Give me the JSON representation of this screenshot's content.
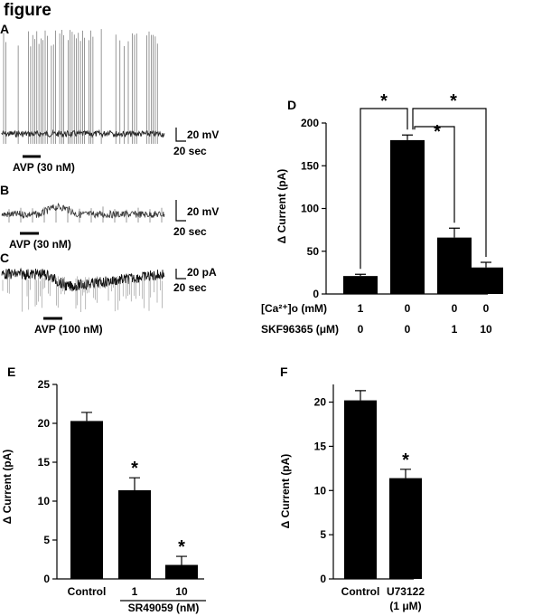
{
  "figure_title": "figure",
  "trace_panels": [
    {
      "label": "A",
      "drug_label": "AVP (30 nM)",
      "scale_y": "20 mV",
      "scale_x": "20 sec"
    },
    {
      "label": "B",
      "drug_label": "AVP (30 nM)",
      "scale_y": "20 mV",
      "scale_x": "20 sec"
    },
    {
      "label": "C",
      "drug_label": "AVP (100 nM)",
      "scale_y": "20 pA",
      "scale_x": "20 sec"
    }
  ],
  "chart_data": [
    {
      "id": "D",
      "label": "D",
      "type": "bar",
      "ylabel": "Δ Current (pA)",
      "ylim": [
        0,
        200
      ],
      "yticks": [
        0,
        50,
        100,
        150,
        200
      ],
      "values": [
        21,
        180,
        66,
        31
      ],
      "errors": [
        2,
        6,
        11,
        6
      ],
      "condition_rows": [
        {
          "name": "[Ca²⁺]o (mM)",
          "values": [
            "1",
            "0",
            "0",
            "0"
          ]
        },
        {
          "name": "SKF96365 (μM)",
          "values": [
            "0",
            "0",
            "1",
            "10"
          ]
        }
      ],
      "significance": [
        "*",
        "*",
        "*"
      ]
    },
    {
      "id": "E",
      "label": "E",
      "type": "bar",
      "ylabel": "Δ Current (pA)",
      "ylim": [
        0,
        25
      ],
      "yticks": [
        0,
        5,
        10,
        15,
        20,
        25
      ],
      "categories": [
        "Control",
        "1",
        "10"
      ],
      "group_label": "SR49059 (nM)",
      "values": [
        20.3,
        11.4,
        1.8
      ],
      "errors": [
        1.1,
        1.6,
        1.1
      ],
      "significance": [
        "",
        "*",
        "*"
      ]
    },
    {
      "id": "F",
      "label": "F",
      "type": "bar",
      "ylabel": "Δ Current (pA)",
      "ylim": [
        0,
        22
      ],
      "yticks": [
        0,
        5,
        10,
        15,
        20
      ],
      "categories": [
        "Control",
        "U73122"
      ],
      "category_sublabels": [
        "",
        "(1 μM)"
      ],
      "values": [
        20.2,
        11.4
      ],
      "errors": [
        1.1,
        1.0
      ],
      "significance": [
        "",
        "*"
      ]
    }
  ]
}
